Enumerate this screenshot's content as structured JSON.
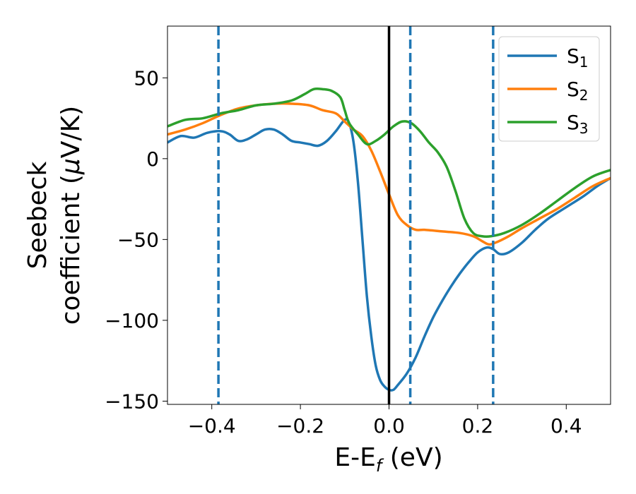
{
  "chart_data": {
    "type": "line",
    "xlabel": "E-E_f (eV)",
    "xlabel_main": "E-E",
    "xlabel_sub": "f",
    "xlabel_tail": " (eV)",
    "ylabel_line1": "Seebeck",
    "ylabel_line2_pre": "coefficient  (",
    "ylabel_line2_mu": "μ",
    "ylabel_line2_post": "V/K)",
    "xlim": [
      -0.5,
      0.5
    ],
    "ylim": [
      -152,
      82
    ],
    "x_ticks": [
      -0.4,
      -0.2,
      0.0,
      0.2,
      0.4
    ],
    "x_tick_labels": [
      "−0.4",
      "−0.2",
      "0.0",
      "0.2",
      "0.4"
    ],
    "y_ticks": [
      50,
      0,
      -50,
      -100,
      -150
    ],
    "y_tick_labels": [
      "50",
      "0",
      "−50",
      "−100",
      "−150"
    ],
    "legend_position": "top-right",
    "vertical_lines": [
      {
        "x": -0.385,
        "style": "dashed",
        "color": "#1f77b4"
      },
      {
        "x": 0.0,
        "style": "solid",
        "color": "#000000"
      },
      {
        "x": 0.048,
        "style": "dashed",
        "color": "#1f77b4"
      },
      {
        "x": 0.235,
        "style": "dashed",
        "color": "#1f77b4"
      }
    ],
    "series": [
      {
        "name": "S_1",
        "label_main": "S",
        "label_sub": "1",
        "color": "#1f77b4",
        "x": [
          -0.5,
          -0.47,
          -0.44,
          -0.41,
          -0.38,
          -0.36,
          -0.34,
          -0.32,
          -0.3,
          -0.28,
          -0.26,
          -0.24,
          -0.22,
          -0.2,
          -0.18,
          -0.16,
          -0.14,
          -0.12,
          -0.1,
          -0.09,
          -0.08,
          -0.07,
          -0.06,
          -0.05,
          -0.04,
          -0.03,
          -0.02,
          -0.01,
          0.0,
          0.01,
          0.02,
          0.04,
          0.06,
          0.08,
          0.1,
          0.12,
          0.14,
          0.16,
          0.18,
          0.2,
          0.22,
          0.235,
          0.25,
          0.27,
          0.3,
          0.33,
          0.36,
          0.4,
          0.44,
          0.47,
          0.5
        ],
        "y": [
          10,
          14,
          13,
          16,
          17,
          15,
          11,
          12,
          15,
          18,
          18,
          15,
          11,
          10,
          9,
          8,
          11,
          17,
          24,
          22,
          10,
          -15,
          -50,
          -85,
          -110,
          -128,
          -137,
          -141,
          -143,
          -143,
          -140,
          -133,
          -123,
          -110,
          -98,
          -88,
          -79,
          -71,
          -64,
          -58,
          -55,
          -56,
          -59,
          -58,
          -52,
          -44,
          -37,
          -30,
          -23,
          -17,
          -12
        ]
      },
      {
        "name": "S_2",
        "label_main": "S",
        "label_sub": "2",
        "color": "#ff7f0e",
        "x": [
          -0.5,
          -0.46,
          -0.42,
          -0.38,
          -0.34,
          -0.3,
          -0.26,
          -0.22,
          -0.18,
          -0.15,
          -0.12,
          -0.1,
          -0.08,
          -0.06,
          -0.04,
          -0.02,
          0.0,
          0.02,
          0.04,
          0.06,
          0.08,
          0.12,
          0.16,
          0.19,
          0.21,
          0.225,
          0.24,
          0.27,
          0.3,
          0.34,
          0.38,
          0.42,
          0.46,
          0.5
        ],
        "y": [
          15,
          18,
          22,
          27,
          31,
          33,
          34,
          34,
          33,
          30,
          28,
          23,
          18,
          14,
          5,
          -8,
          -22,
          -35,
          -41,
          -44,
          -44,
          -45,
          -46,
          -48,
          -51,
          -53,
          -52,
          -48,
          -43,
          -37,
          -31,
          -24,
          -17,
          -12
        ]
      },
      {
        "name": "S_3",
        "label_main": "S",
        "label_sub": "3",
        "color": "#2ca02c",
        "x": [
          -0.5,
          -0.46,
          -0.42,
          -0.38,
          -0.34,
          -0.3,
          -0.26,
          -0.22,
          -0.19,
          -0.17,
          -0.15,
          -0.13,
          -0.11,
          -0.1,
          -0.09,
          -0.07,
          -0.05,
          -0.03,
          -0.01,
          0.01,
          0.03,
          0.05,
          0.07,
          0.09,
          0.11,
          0.13,
          0.15,
          0.17,
          0.19,
          0.21,
          0.23,
          0.26,
          0.3,
          0.34,
          0.38,
          0.42,
          0.46,
          0.5
        ],
        "y": [
          20,
          24,
          25,
          28,
          30,
          33,
          34,
          36,
          40,
          43,
          43,
          42,
          38,
          30,
          22,
          15,
          9,
          11,
          15,
          20,
          23,
          22,
          17,
          10,
          4,
          -5,
          -20,
          -37,
          -46,
          -48,
          -48,
          -46,
          -41,
          -34,
          -26,
          -18,
          -11,
          -7
        ]
      }
    ]
  }
}
